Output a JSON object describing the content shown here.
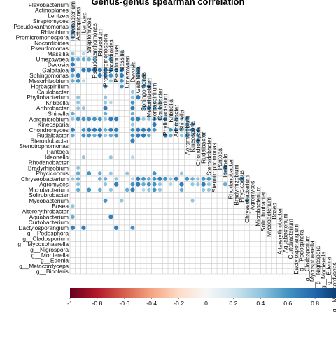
{
  "chart_data": {
    "type": "heatmap",
    "title": "Genus-genus spearman correlation",
    "layout": "lower-triangle",
    "mark": "circle",
    "labels": [
      "Flavobacterium",
      "Actinoplanes",
      "Lentzea",
      "Streptomyces",
      "Pseudoxanthomonas",
      "Rhizobium",
      "Promicromonospora",
      "Nocardioides",
      "Pseudomonas",
      "Massilia",
      "Umezawaea",
      "Devosia",
      "Galbitalea",
      "Sphingomonas",
      "Mesorhizobium",
      "Herbaspirillum",
      "Caulobacter",
      "Phyllobacterium",
      "Kribbella",
      "Arthrobacter",
      "Shinella",
      "Aeromicrobium",
      "Kineosporia",
      "Chondromyces",
      "Rudaibacter",
      "Steroidobacter",
      "Stenotrophomonas",
      "Pantoea",
      "Ideonella",
      "Rhodanobacter",
      "Bradyrhizobium",
      "Phycicoccus",
      "Chryseobacterium",
      "Agromyces",
      "Microbacterium",
      "Solirubrobacter",
      "Mycobacterium",
      "Bosea",
      "Altererythrobacter",
      "Aquabacterium",
      "Curtobacterium",
      "Dactylosporangium",
      "g__Podosphora",
      "g__Cladosporium",
      "g__Mycosphaerella",
      "g__Nigrospora",
      "g__Mortierella",
      "g__Edenia",
      "g__Metacordyceps",
      "g__Bipolaris"
    ],
    "matrix_rows": [
      "3",
      "00",
      "000",
      "0000",
      "50000",
      "700000",
      "5000000",
      "00000000",
      "000000000",
      "4030000003",
      "65555006000",
      "700000000004",
      "7077777667006",
      "57000776370055",
      "563000043600043",
      "0000006006000670",
      "00000000000400000",
      "040000400004700000",
      "0400004300060044400",
      "04400070000705754000",
      "500000500005000000000",
      "4666664770067446560546",
      "00000000000400070004055",
      "706777577006777600665576",
      "5066574560067750075046455",
      "00000000000700000000000700",
      "000000000000000000000000000",
      "0000000000000000000000000000",
      "00400004000300000000000000000",
      "000000000000000000000000000000",
      "0400000000000000000000000000700",
      "05060504004000060000400000004000",
      "450005504003765676470654664000070",
      "0400004070067566403070447400500000",
      "05060504005703464000500044000000000",
      "000000000000000000000000000000000000",
      "0000006004000000000000400000000060000",
      "40000000000000000000000000000000000000",
      "000000000000000000000000000000000000000",
      "5000000700000000000000000000000000000000",
      "00000000000000000000000000000000000000000",
      "707000007006000000000000000000000000000000",
      "0000000000000000000000000000000000000000000",
      "00000000000000000000000000000000000000000000",
      "000000000000000000000000000000000000000000000",
      "0000000000000000000000000000000000000000000000",
      "00000000000000000000000000000000000000000000000",
      "000000000000000000000000000000000000000000000000",
      "0000000000000000000000000000000000000000000000000",
      "00000000000000000000000000000000000000000000000000"
    ],
    "value_key": {
      "0": null,
      "3": 0.3,
      "4": 0.4,
      "5": 0.5,
      "6": 0.6,
      "7": 0.7
    },
    "colorbar": {
      "min": -1,
      "max": 1,
      "ticks": [
        "-1",
        "-0.8",
        "-0.6",
        "-0.4",
        "-0.2",
        "0",
        "0.2",
        "0.4",
        "0.6",
        "0.8",
        "1"
      ],
      "colors": [
        "#67001f",
        "#b2182b",
        "#d6604d",
        "#f4a582",
        "#fddbc7",
        "#f7f7f7",
        "#d1e5f0",
        "#92c5de",
        "#4393c3",
        "#2166ac",
        "#053061"
      ]
    },
    "grid": true
  }
}
